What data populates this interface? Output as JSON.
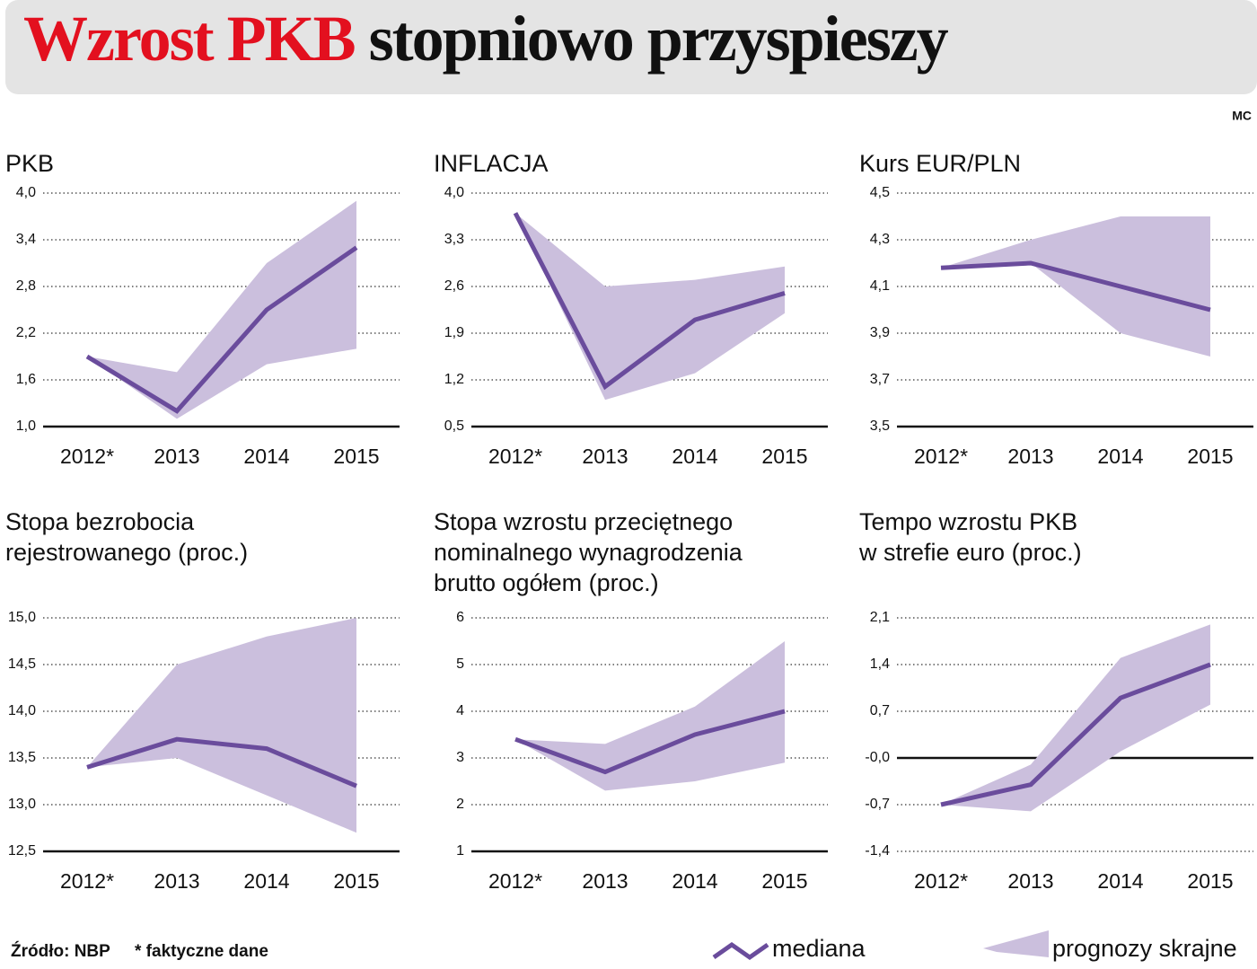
{
  "header": {
    "title_red": "Wzrost PKB",
    "title_black": "stopniowo przyspieszy",
    "credit": "MC"
  },
  "chart_data": [
    {
      "type": "line",
      "title": [
        "PKB"
      ],
      "categories": [
        "2012*",
        "2013",
        "2014",
        "2015"
      ],
      "values": [
        1.9,
        1.2,
        2.5,
        3.3
      ],
      "high": [
        1.9,
        1.7,
        3.1,
        3.9
      ],
      "low": [
        1.9,
        1.1,
        1.8,
        2.0
      ],
      "color": "#6a4c9c",
      "band_color": "#cbbfdd",
      "ylim": [
        1.0,
        4.0
      ],
      "yticks": [
        {
          "value": 1.0,
          "label": "1,0"
        },
        {
          "value": 1.6,
          "label": "1,6"
        },
        {
          "value": 2.2,
          "label": "2,2"
        },
        {
          "value": 2.8,
          "label": "2,8"
        },
        {
          "value": 3.4,
          "label": "3,4"
        },
        {
          "value": 4.0,
          "label": "4,0"
        }
      ],
      "solid_line_at": 1.0
    },
    {
      "type": "line",
      "title": [
        "INFLACJA"
      ],
      "categories": [
        "2012*",
        "2013",
        "2014",
        "2015"
      ],
      "values": [
        3.7,
        1.1,
        2.1,
        2.5
      ],
      "high": [
        3.7,
        2.6,
        2.7,
        2.9
      ],
      "low": [
        3.7,
        0.9,
        1.3,
        2.2
      ],
      "color": "#6a4c9c",
      "band_color": "#cbbfdd",
      "ylim": [
        0.5,
        4.0
      ],
      "yticks": [
        {
          "value": 0.5,
          "label": "0,5"
        },
        {
          "value": 1.2,
          "label": "1,2"
        },
        {
          "value": 1.9,
          "label": "1,9"
        },
        {
          "value": 2.6,
          "label": "2,6"
        },
        {
          "value": 3.3,
          "label": "3,3"
        },
        {
          "value": 4.0,
          "label": "4,0"
        }
      ],
      "solid_line_at": 0.5
    },
    {
      "type": "line",
      "title": [
        "Kurs EUR/PLN"
      ],
      "categories": [
        "2012*",
        "2013",
        "2014",
        "2015"
      ],
      "values": [
        4.18,
        4.2,
        4.1,
        4.0
      ],
      "high": [
        4.18,
        4.3,
        4.4,
        4.4
      ],
      "low": [
        4.18,
        4.2,
        3.9,
        3.8
      ],
      "color": "#6a4c9c",
      "band_color": "#cbbfdd",
      "ylim": [
        3.5,
        4.5
      ],
      "yticks": [
        {
          "value": 3.5,
          "label": "3,5"
        },
        {
          "value": 3.7,
          "label": "3,7"
        },
        {
          "value": 3.9,
          "label": "3,9"
        },
        {
          "value": 4.1,
          "label": "4,1"
        },
        {
          "value": 4.3,
          "label": "4,3"
        },
        {
          "value": 4.5,
          "label": "4,5"
        }
      ],
      "solid_line_at": 3.5
    },
    {
      "type": "line",
      "title": [
        "Stopa bezrobocia",
        "rejestrowanego (proc.)"
      ],
      "categories": [
        "2012*",
        "2013",
        "2014",
        "2015"
      ],
      "values": [
        13.4,
        13.7,
        13.6,
        13.2
      ],
      "high": [
        13.4,
        14.5,
        14.8,
        15.0
      ],
      "low": [
        13.4,
        13.5,
        13.1,
        12.7
      ],
      "color": "#6a4c9c",
      "band_color": "#cbbfdd",
      "ylim": [
        12.5,
        15.0
      ],
      "yticks": [
        {
          "value": 12.5,
          "label": "12,5"
        },
        {
          "value": 13.0,
          "label": "13,0"
        },
        {
          "value": 13.5,
          "label": "13,5"
        },
        {
          "value": 14.0,
          "label": "14,0"
        },
        {
          "value": 14.5,
          "label": "14,5"
        },
        {
          "value": 15.0,
          "label": "15,0"
        }
      ],
      "solid_line_at": 12.5
    },
    {
      "type": "line",
      "title": [
        "Stopa wzrostu przeciętnego",
        "nominalnego wynagrodzenia",
        "brutto ogółem (proc.)"
      ],
      "categories": [
        "2012*",
        "2013",
        "2014",
        "2015"
      ],
      "values": [
        3.4,
        2.7,
        3.5,
        4.0
      ],
      "high": [
        3.4,
        3.3,
        4.1,
        5.5
      ],
      "low": [
        3.4,
        2.3,
        2.5,
        2.9
      ],
      "color": "#6a4c9c",
      "band_color": "#cbbfdd",
      "ylim": [
        1,
        6
      ],
      "yticks": [
        1,
        2,
        3,
        4,
        5,
        6
      ],
      "solid_line_at": 1
    },
    {
      "type": "line",
      "title": [
        "Tempo wzrostu PKB",
        "w strefie euro (proc.)"
      ],
      "categories": [
        "2012*",
        "2013",
        "2014",
        "2015"
      ],
      "values": [
        -0.7,
        -0.4,
        0.9,
        1.4
      ],
      "high": [
        -0.7,
        -0.1,
        1.5,
        2.0
      ],
      "low": [
        -0.7,
        -0.8,
        0.1,
        0.8
      ],
      "color": "#6a4c9c",
      "band_color": "#cbbfdd",
      "ylim": [
        -1.4,
        2.1
      ],
      "yticks": [
        {
          "value": -1.4,
          "label": "-1,4"
        },
        {
          "value": -0.7,
          "label": "-0,7"
        },
        {
          "value": 0,
          "label": "-0,0"
        },
        {
          "value": 0.7,
          "label": "0,7"
        },
        {
          "value": 1.4,
          "label": "1,4"
        },
        {
          "value": 2.1,
          "label": "2,1"
        }
      ],
      "solid_line_at": 0
    }
  ],
  "legend": {
    "median": "mediana",
    "range": "prognozy skrajne"
  },
  "footer": {
    "source": "Źródło: NBP",
    "note": "* faktyczne dane"
  }
}
